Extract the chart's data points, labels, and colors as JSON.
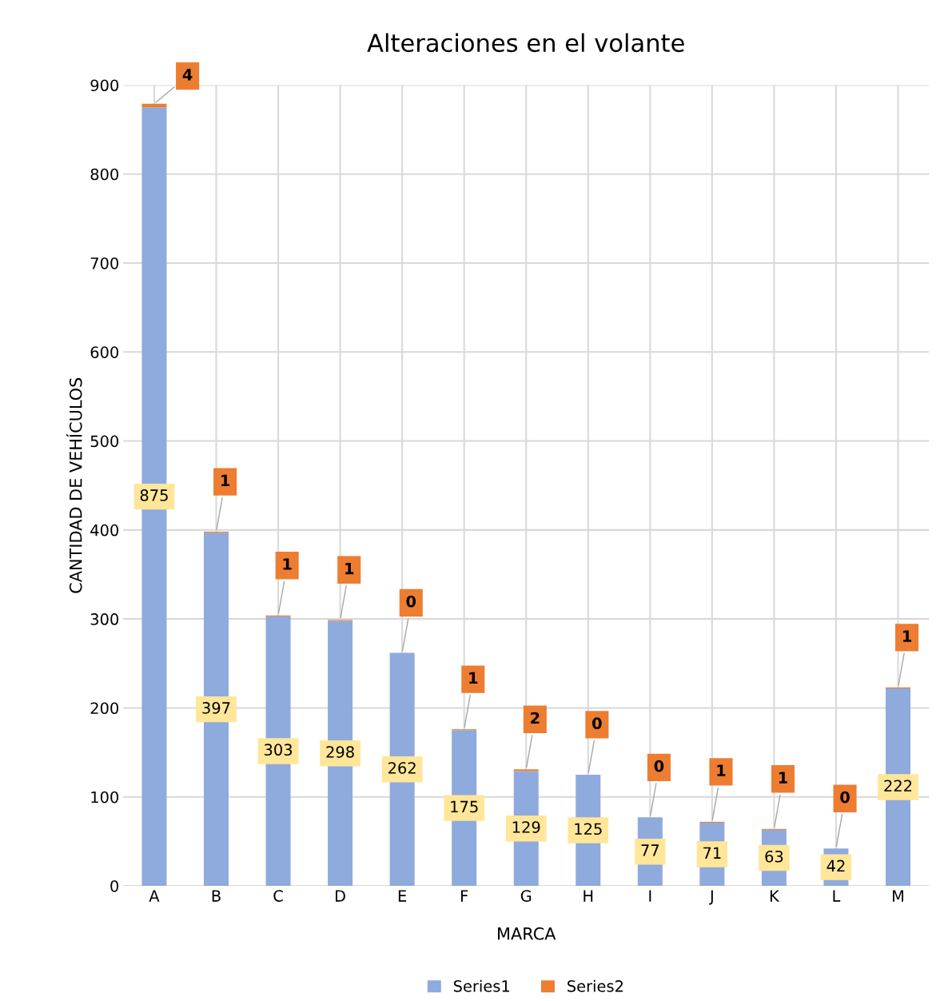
{
  "chart_data": {
    "type": "bar",
    "title": "Alteraciones en el volante",
    "xlabel": "MARCA",
    "ylabel": "CANTIDAD DE VEHÍCULOS",
    "categories": [
      "A",
      "B",
      "C",
      "D",
      "E",
      "F",
      "G",
      "H",
      "I",
      "J",
      "K",
      "L",
      "M"
    ],
    "series": [
      {
        "name": "Series1",
        "color": "#8faadc",
        "values": [
          875,
          397,
          303,
          298,
          262,
          175,
          129,
          125,
          77,
          71,
          63,
          42,
          222
        ]
      },
      {
        "name": "Series2",
        "color": "#ed7d31",
        "values": [
          4,
          1,
          1,
          1,
          0,
          1,
          2,
          0,
          0,
          1,
          1,
          0,
          1
        ]
      }
    ],
    "stacked": true,
    "data_labels": true,
    "ylim": [
      0,
      900
    ],
    "yticks": [
      0,
      100,
      200,
      300,
      400,
      500,
      600,
      700,
      800,
      900
    ],
    "grid": true,
    "legend": "bottom"
  }
}
